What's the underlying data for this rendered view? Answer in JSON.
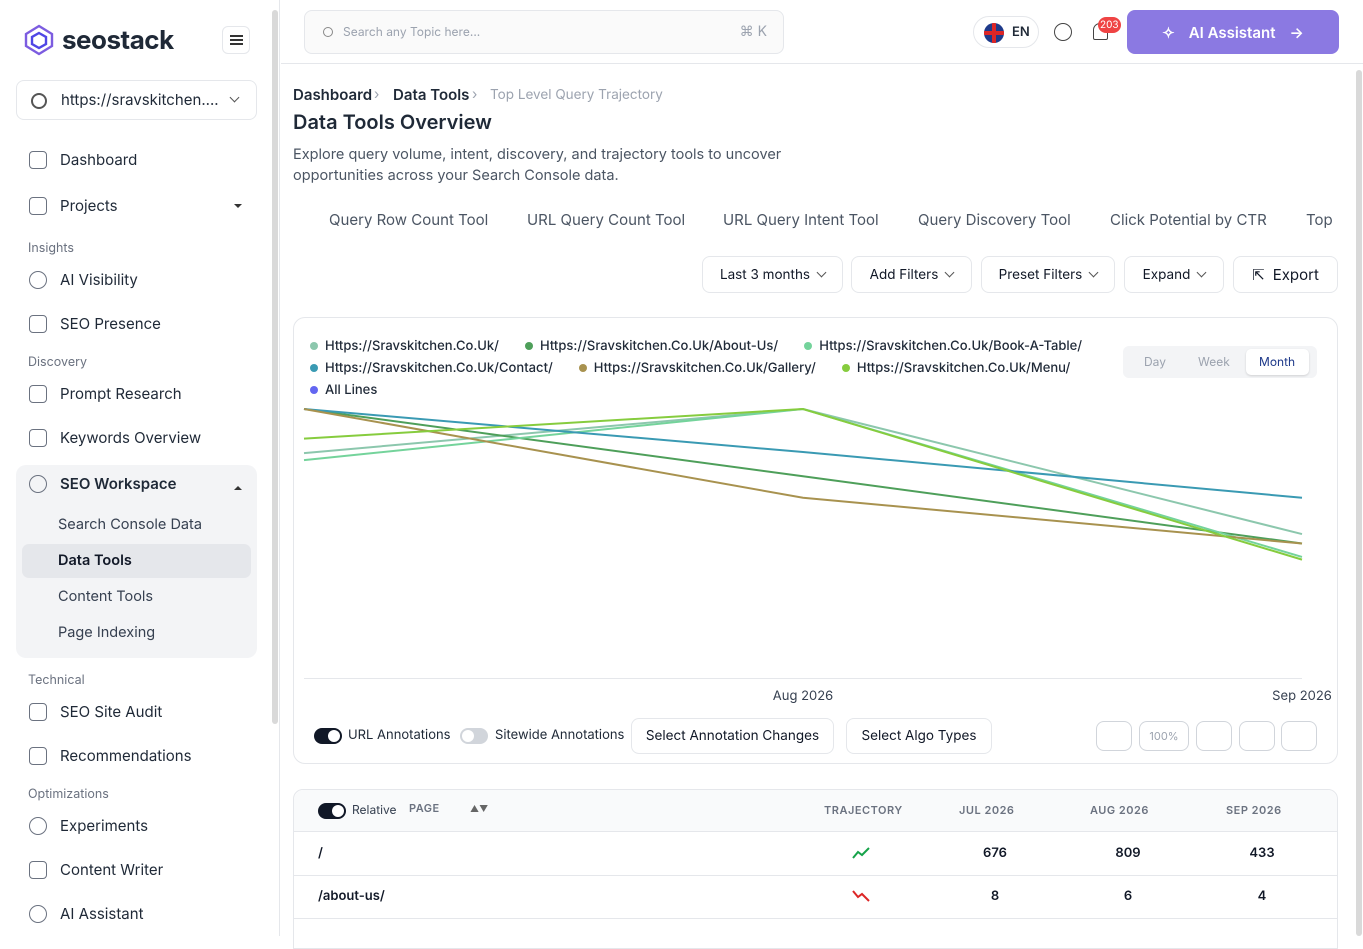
{
  "sidebar": {
    "brand": "seostack",
    "site": "https://sravskitchen....",
    "items": [
      "Dashboard",
      "Projects",
      "Insights",
      "AI Visibility",
      "SEO Presence",
      "Discovery",
      "Prompt Research",
      "Keywords Overview",
      "SEO Workspace",
      "Search Console Data",
      "Data Tools",
      "Content Tools",
      "Page Indexing",
      "Technical",
      "SEO Site Audit",
      "Recommendations",
      "Optimizations",
      "Experiments",
      "Content Writer",
      "AI Assistant"
    ]
  },
  "header": {
    "search_placeholder": "Search any Topic here...",
    "shortcut": "⌘ K",
    "language": "EN",
    "notifications": "203",
    "assistant_button": "AI Assistant"
  },
  "breadcrumb": [
    "Dashboard",
    "Data Tools",
    "Top Level Query Trajectory"
  ],
  "title": "Data Tools Overview",
  "description": "Explore query volume, intent, discovery, and trajectory tools to uncover opportunities across your Search Console data.",
  "tabs": [
    "Query Row Count Tool",
    "URL Query Count Tool",
    "URL Query Intent Tool",
    "Query Discovery Tool",
    "Click Potential by CTR",
    "Top Level Query Trajectory"
  ],
  "filters": [
    "Last 3 months",
    "Add Filters",
    "Preset Filters",
    "Expand",
    "Export"
  ],
  "granularity": [
    "Day",
    "Week",
    "Month"
  ],
  "controls": {
    "url_annotations": "URL Annotations",
    "sitewide_annotations": "Sitewide Annotations",
    "annotation_changes": "Select Annotation Changes",
    "algo_types": "Select Algo Types",
    "zoom": "100%"
  },
  "chart_data": {
    "type": "line",
    "categories": [
      null,
      "Aug 2026",
      "Sep 2026"
    ],
    "ylim": [
      0,
      100
    ],
    "series": [
      {
        "name": "Https://Sravskitchen.Co.Uk/",
        "color": "#8cc7ad",
        "values": [
          83.6,
          100,
          53.5
        ]
      },
      {
        "name": "Https://Sravskitchen.Co.Uk/About-Us/",
        "color": "#4e9f5a",
        "values": [
          100,
          75,
          50
        ]
      },
      {
        "name": "Https://Sravskitchen.Co.Uk/Book-A-Table/",
        "color": "#74d39b",
        "values": [
          81,
          100,
          45
        ]
      },
      {
        "name": "Https://Sravskitchen.Co.Uk/Contact/",
        "color": "#3a9ab3",
        "values": [
          100,
          84,
          67
        ]
      },
      {
        "name": "Https://Sravskitchen.Co.Uk/Gallery/",
        "color": "#a8924f",
        "values": [
          100,
          67,
          50
        ]
      },
      {
        "name": "Https://Sravskitchen.Co.Uk/Menu/",
        "color": "#86cc3e",
        "values": [
          89,
          100,
          44
        ]
      },
      {
        "name": "All Lines",
        "color": "#6366f1",
        "values": [
          null,
          null,
          null
        ]
      }
    ]
  },
  "table": {
    "header": [
      "Relative",
      "PAGE",
      "TRAJECTORY",
      "JUL 2026",
      "AUG 2026",
      "SEP 2026"
    ],
    "rows": [
      [
        "/",
        "676",
        "809",
        "433"
      ],
      [
        "/about-us/",
        "8",
        "6",
        "4"
      ]
    ]
  }
}
